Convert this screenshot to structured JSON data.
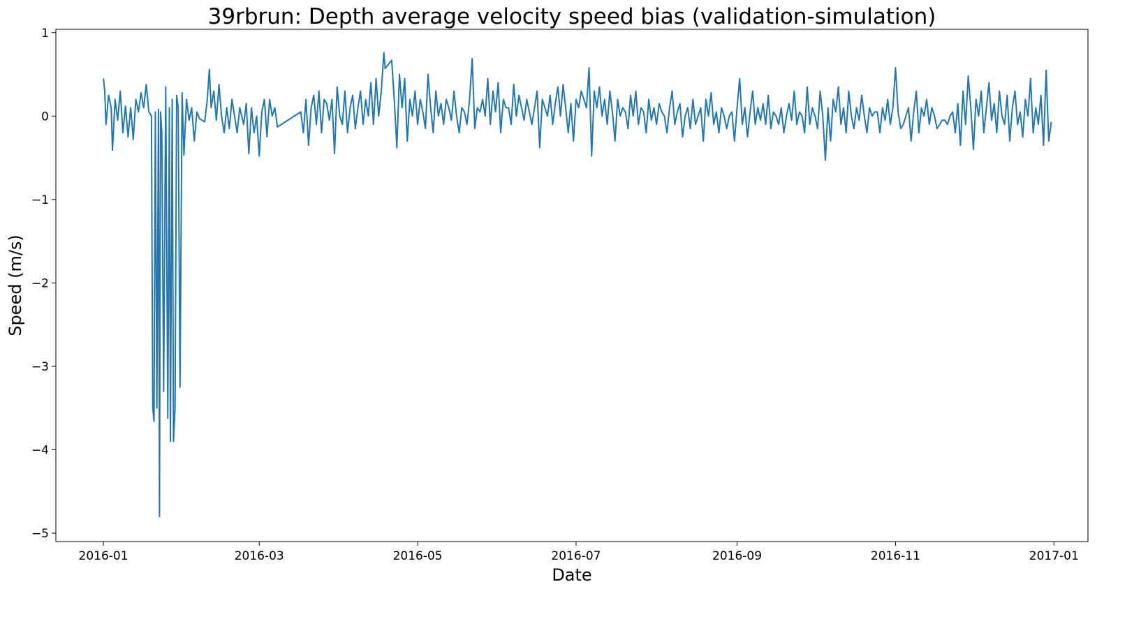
{
  "chart_data": {
    "type": "line",
    "title": "39rbrun: Depth average velocity speed bias (validation-simulation)",
    "x_label": "Date",
    "y_label": "Speed (m/s)",
    "color": "#1f77b4",
    "xlim": [
      -18.3,
      379.1
    ],
    "ylim": [
      -5.1,
      1.04
    ],
    "xticks": [
      {
        "value": 0,
        "label": "2016-01"
      },
      {
        "value": 60,
        "label": "2016-03"
      },
      {
        "value": 121,
        "label": "2016-05"
      },
      {
        "value": 182,
        "label": "2016-07"
      },
      {
        "value": 244,
        "label": "2016-09"
      },
      {
        "value": 305,
        "label": "2016-11"
      },
      {
        "value": 366,
        "label": "2017-01"
      }
    ],
    "yticks": [
      {
        "value": -5,
        "label": "−5"
      },
      {
        "value": -4,
        "label": "−4"
      },
      {
        "value": -3,
        "label": "−3"
      },
      {
        "value": -2,
        "label": "−2"
      },
      {
        "value": -1,
        "label": "−1"
      },
      0,
      1
    ],
    "x": [
      0,
      0.5,
      1,
      2,
      3,
      3.5,
      4.5,
      5.5,
      6.5,
      7.5,
      8.5,
      9.5,
      10.5,
      11.5,
      12.5,
      13.5,
      14.5,
      15.5,
      16.5,
      17.5,
      18.5,
      19,
      19.5,
      20,
      20.6,
      21.2,
      21.6,
      22,
      22.5,
      23.2,
      24,
      24.8,
      25.4,
      25.8,
      26.5,
      27,
      27.6,
      28.2,
      28.8,
      29.5,
      30.3,
      31,
      32,
      33,
      34,
      35,
      36,
      37,
      39,
      40,
      40.8,
      41.5,
      42.5,
      43.5,
      44.5,
      45.5,
      46.5,
      47.5,
      48.5,
      49.5,
      50.5,
      51.5,
      52.5,
      54,
      55,
      56,
      57,
      58,
      59,
      60,
      61,
      62,
      63,
      64,
      65,
      66,
      67,
      76,
      77,
      78,
      79,
      80,
      81,
      82,
      83,
      84,
      85,
      86,
      87,
      88,
      89,
      90,
      91,
      92,
      93,
      94,
      95,
      96,
      97,
      98,
      99,
      100,
      101,
      102,
      103,
      104,
      105,
      106,
      107,
      108,
      108.5,
      111,
      112,
      113,
      114,
      115,
      116,
      117,
      118,
      119,
      120,
      121,
      122,
      123,
      124,
      125,
      126,
      127,
      128,
      129,
      130,
      131,
      132,
      133,
      134,
      135,
      136,
      137,
      138,
      139,
      140,
      141,
      142,
      143,
      144,
      145,
      146,
      147,
      148,
      149,
      150,
      151,
      152,
      153,
      154,
      155,
      156,
      157,
      158,
      159,
      160,
      161,
      162,
      163,
      164,
      165,
      166,
      167,
      168,
      169,
      170,
      171,
      172,
      173,
      174,
      175,
      176,
      177,
      178,
      179,
      180,
      181,
      182,
      183,
      184,
      185,
      186,
      187,
      188,
      189,
      190,
      191,
      192,
      193,
      194,
      195,
      196,
      197,
      198,
      199,
      200,
      201,
      202,
      203,
      204,
      205,
      206,
      207,
      208,
      209,
      210,
      211,
      212,
      213,
      214,
      215,
      216,
      217,
      218,
      219,
      220,
      221,
      222,
      223,
      224,
      225,
      226,
      227,
      228,
      229,
      230,
      231,
      232,
      233,
      234,
      235,
      236,
      237,
      238,
      239,
      240,
      241,
      242,
      243,
      244,
      245,
      246,
      247,
      248,
      249,
      250,
      251,
      252,
      253,
      254,
      255,
      256,
      257,
      258,
      259,
      260,
      261,
      262,
      263,
      264,
      265,
      266,
      267,
      268,
      269,
      270,
      271,
      272,
      273,
      274,
      275,
      276,
      277,
      278,
      279,
      280,
      281,
      282,
      283,
      284,
      285,
      286,
      287,
      288,
      289,
      290,
      291,
      292,
      293,
      294,
      295,
      296,
      297,
      298,
      299,
      300,
      301,
      302,
      303,
      304,
      305,
      306,
      307,
      308,
      309,
      310,
      311,
      312,
      313,
      314,
      315,
      316,
      317,
      318,
      319,
      320,
      321,
      322,
      323,
      324,
      325,
      326,
      327,
      328,
      329,
      330,
      331,
      332,
      333,
      334,
      335,
      336,
      337,
      338,
      339,
      340,
      341,
      342,
      343,
      344,
      345,
      346,
      347,
      348,
      349,
      350,
      351,
      352,
      353,
      354,
      355,
      356,
      357,
      358,
      359,
      360,
      361,
      362,
      363,
      364,
      365
    ],
    "values": [
      0.45,
      0.3,
      -0.1,
      0.25,
      0.1,
      -0.41,
      0.2,
      -0.05,
      0.3,
      -0.2,
      0.12,
      -0.25,
      0.1,
      -0.28,
      0.2,
      0.05,
      0.28,
      0.1,
      0.38,
      0.05,
      0,
      -3.5,
      -3.66,
      0.05,
      -3.5,
      0.08,
      -4.8,
      0.05,
      -0.2,
      -3.3,
      0.35,
      -3.62,
      0.1,
      -3.9,
      0.2,
      -3.9,
      -3.5,
      0.25,
      0.1,
      -3.25,
      0.28,
      -0.47,
      0.2,
      -0.05,
      0.1,
      -0.3,
      0.05,
      -0.03,
      -0.07,
      0.2,
      0.56,
      0.1,
      0.3,
      -0.05,
      0.38,
      0,
      -0.2,
      0.1,
      -0.15,
      0.2,
      0,
      -0.2,
      0.1,
      -0.1,
      0.15,
      -0.45,
      0.1,
      -0.2,
      0,
      -0.48,
      0.05,
      0.2,
      -0.25,
      0.2,
      0,
      0.1,
      -0.13,
      0.05,
      -0.2,
      0.2,
      -0.35,
      0.1,
      0.25,
      -0.1,
      0.3,
      -0.2,
      0.2,
      0.15,
      -0.05,
      0.2,
      -0.45,
      0.35,
      0,
      -0.1,
      0.3,
      -0.2,
      0.1,
      0.25,
      -0.15,
      0.1,
      0.3,
      -0.1,
      0.2,
      0,
      0.4,
      -0.1,
      0.45,
      0,
      0.3,
      0.76,
      0.57,
      0.67,
      0.2,
      -0.38,
      0.5,
      0.1,
      0.45,
      -0.3,
      0.2,
      0,
      0.3,
      -0.1,
      0.2,
      0.05,
      -0.15,
      0.5,
      0.1,
      -0.2,
      0.3,
      0,
      0.15,
      -0.1,
      0.2,
      0.1,
      -0.05,
      0.3,
      0,
      -0.2,
      0.1,
      0.05,
      -0.1,
      0.2,
      0.69,
      -0.15,
      0.1,
      0.05,
      0.2,
      0,
      0.45,
      -0.1,
      0.3,
      0.05,
      0.4,
      -0.2,
      0.2,
      0.1,
      0.1,
      -0.1,
      0.38,
      0,
      0.25,
      0.1,
      -0.05,
      0.2,
      0.05,
      -0.1,
      0.1,
      0.3,
      -0.38,
      0.2,
      0.1,
      0,
      0.25,
      -0.1,
      0.15,
      0.35,
      0,
      0.38,
      0.1,
      -0.2,
      0.15,
      -0.3,
      0.2,
      0.1,
      0.3,
      0.2,
      0.1,
      0.58,
      -0.48,
      0.3,
      0.1,
      0.35,
      0,
      0.2,
      -0.1,
      0.3,
      0.05,
      -0.3,
      0.2,
      0,
      0.1,
      0.05,
      -0.15,
      0.25,
      0,
      0.3,
      -0.1,
      0.1,
      0.05,
      -0.2,
      0.2,
      -0.05,
      0.1,
      -0.1,
      0.15,
      0.05,
      0,
      -0.2,
      0.1,
      0.3,
      -0.1,
      0.05,
      0.15,
      -0.25,
      0,
      0.1,
      -0.15,
      0.2,
      -0.1,
      0,
      0.1,
      -0.3,
      0.2,
      0,
      0.28,
      -0.1,
      0.05,
      -0.2,
      0.1,
      0,
      -0.15,
      0,
      0.05,
      -0.3,
      0.1,
      0.45,
      -0.1,
      0.1,
      -0.25,
      0.05,
      0.3,
      -0.1,
      0.1,
      -0.05,
      0.15,
      -0.1,
      0.25,
      -0.15,
      0.05,
      0,
      -0.1,
      0.1,
      -0.2,
      0,
      0.15,
      -0.05,
      0.3,
      -0.1,
      0.05,
      0,
      -0.2,
      0.35,
      -0.1,
      0.1,
      0,
      -0.15,
      0.3,
      0,
      -0.53,
      0.1,
      -0.3,
      0.2,
      0.05,
      0.35,
      -0.1,
      0.1,
      -0.2,
      0.3,
      0,
      -0.15,
      0.1,
      -0.05,
      0.25,
      0,
      -0.2,
      0.1,
      0,
      0.05,
      0.05,
      -0.2,
      0.1,
      -0.05,
      0.2,
      -0.1,
      0.1,
      0.58,
      0.05,
      -0.15,
      -0.1,
      0,
      0.1,
      -0.3,
      0.05,
      0.3,
      -0.2,
      0.1,
      0,
      0.2,
      -0.1,
      0.1,
      0,
      -0.15,
      -0.1,
      -0.05,
      -0.05,
      -0.1,
      0,
      0.05,
      -0.2,
      0.15,
      -0.35,
      0.3,
      -0.1,
      0.48,
      0.1,
      -0.4,
      0.2,
      0,
      0.3,
      -0.2,
      0.1,
      0.4,
      -0.05,
      0.15,
      -0.2,
      0.3,
      0,
      -0.1,
      0.25,
      -0.3,
      0.1,
      0.3,
      -0.1,
      0.05,
      -0.25,
      0.2,
      0,
      0.45,
      -0.2,
      0.1,
      -0.1,
      0.25,
      -0.35,
      0.55,
      -0.3,
      -0.07
    ]
  }
}
